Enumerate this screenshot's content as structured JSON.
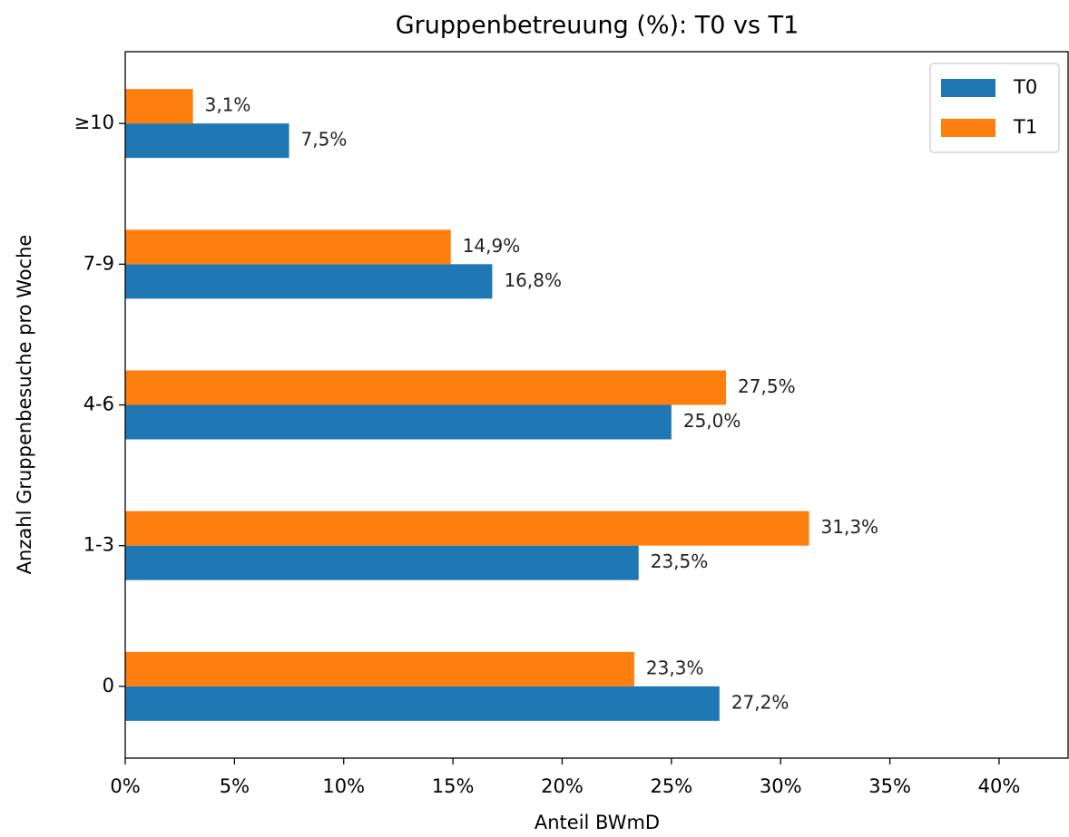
{
  "chart_data": {
    "type": "barh",
    "title": "Gruppenbetreuung (%): T0 vs T1",
    "x_label": "Anteil BWmD",
    "y_label": "Anzahl Gruppenbesuche pro Woche",
    "categories": [
      "0",
      "1-3",
      "4-6",
      "7-9",
      "≥10"
    ],
    "series": [
      {
        "name": "T0",
        "color": "#1f77b4",
        "values": [
          27.2,
          23.5,
          25.0,
          16.8,
          7.5
        ],
        "value_labels": [
          "27,2%",
          "23,5%",
          "25,0%",
          "16,8%",
          "7,5%"
        ]
      },
      {
        "name": "T1",
        "color": "#ff7f0e",
        "values": [
          23.3,
          31.3,
          27.5,
          14.9,
          3.1
        ],
        "value_labels": [
          "23,3%",
          "31,3%",
          "27,5%",
          "14,9%",
          "3,1%"
        ]
      }
    ],
    "xlim": [
      0,
      43.2
    ],
    "xticks": [
      {
        "value": 0,
        "label": "0%"
      },
      {
        "value": 5,
        "label": "5%"
      },
      {
        "value": 10,
        "label": "10%"
      },
      {
        "value": 15,
        "label": "15%"
      },
      {
        "value": 20,
        "label": "20%"
      },
      {
        "value": 25,
        "label": "25%"
      },
      {
        "value": 30,
        "label": "30%"
      },
      {
        "value": 35,
        "label": "35%"
      },
      {
        "value": 40,
        "label": "40%"
      }
    ],
    "legend": "upper right",
    "grid": false
  }
}
